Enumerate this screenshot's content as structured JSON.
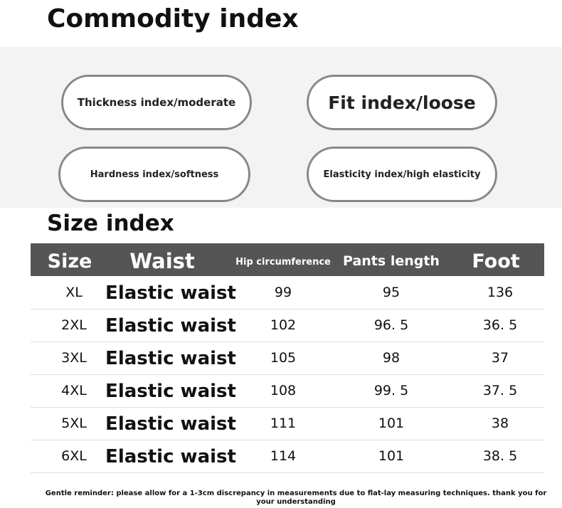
{
  "header": {
    "title": "Commodity index"
  },
  "indices": [
    "Thickness index/moderate",
    "Fit index/loose",
    "Hardness index/softness",
    "Elasticity index/high elasticity"
  ],
  "size_title": "Size index",
  "table": {
    "columns": [
      "Size",
      "Waist",
      "Hip circumference",
      "Pants length",
      "Foot"
    ],
    "rows": [
      [
        "XL",
        "Elastic waist",
        "99",
        "95",
        "136"
      ],
      [
        "2XL",
        "Elastic waist",
        "102",
        "96. 5",
        "36. 5"
      ],
      [
        "3XL",
        "Elastic waist",
        "105",
        "98",
        "37"
      ],
      [
        "4XL",
        "Elastic waist",
        "108",
        "99. 5",
        "37. 5"
      ],
      [
        "5XL",
        "Elastic waist",
        "111",
        "101",
        "38"
      ],
      [
        "6XL",
        "Elastic waist",
        "114",
        "101",
        "38. 5"
      ]
    ]
  },
  "reminder": "Gentle reminder: please allow for a 1-3cm discrepancy in measurements due to flat-lay measuring techniques. thank you for your understanding"
}
